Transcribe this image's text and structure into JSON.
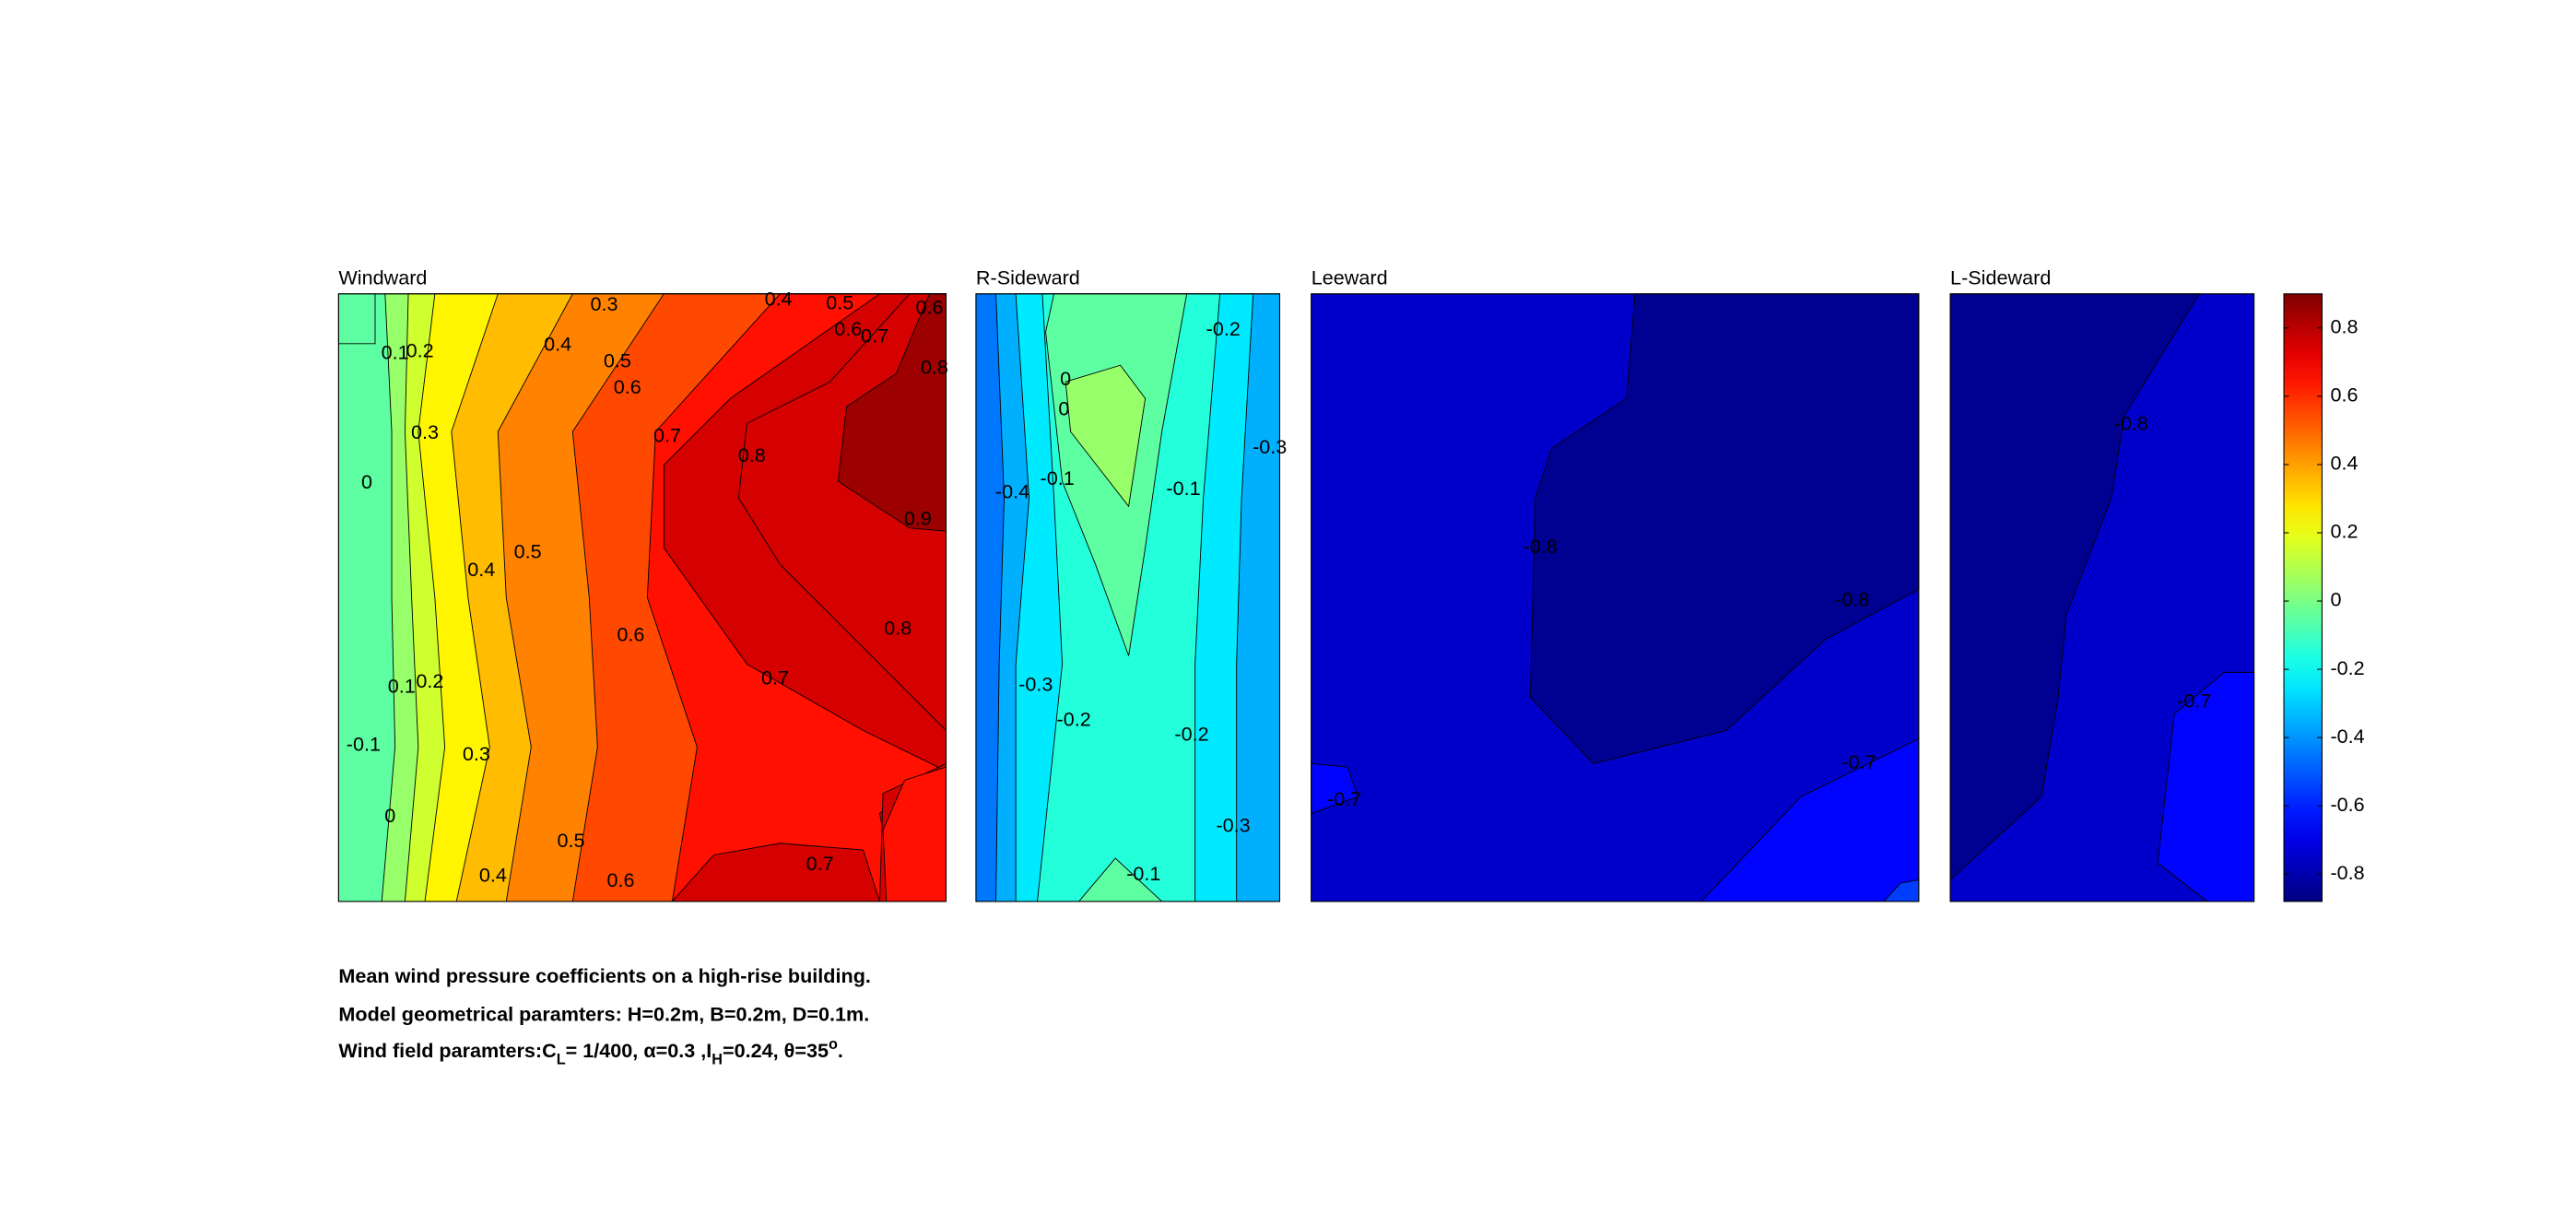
{
  "panels": [
    {
      "title": "Windward",
      "labels": [
        "0.1",
        "0.2",
        "0.3",
        "0.4",
        "0.5",
        "0.6",
        "0.4",
        "0.5",
        "0.6",
        "0.6",
        "0.7",
        "0.8",
        "0.3",
        "0",
        "0.7",
        "0.8",
        "0.9",
        "0.4",
        "0.5",
        "0.6",
        "0.8",
        "0.1",
        "0.2",
        "0.7",
        "-0.1",
        "0.3",
        "0",
        "0.5",
        "0.4",
        "0.6",
        "0.7"
      ]
    },
    {
      "title": "R-Sideward",
      "labels": [
        "-0.2",
        "0",
        "0",
        "-0.3",
        "-0.4",
        "-0.1",
        "-0.1",
        "-0.3",
        "-0.2",
        "-0.2",
        "-0.3",
        "-0.1"
      ]
    },
    {
      "title": "Leeward",
      "labels": [
        "-0.8",
        "-0.8",
        "-0.7",
        "-0.7"
      ]
    },
    {
      "title": "L-Sideward",
      "labels": [
        "-0.8",
        "-0.7"
      ]
    }
  ],
  "colorbar": {
    "clim": [
      -0.88,
      0.9
    ],
    "ticks": [
      0.8,
      0.6,
      0.4,
      0.2,
      0,
      -0.2,
      -0.4,
      -0.6,
      -0.8
    ]
  },
  "caption": {
    "lines": [
      [
        "Mean wind pressure coefficients on a high-rise building."
      ],
      [
        "Model geometrical paramters: H=0.2m, B=0.2m, D=0.1m."
      ],
      [
        "Wind field paramters:C",
        "L",
        "= 1/400, α=0.3 ,I",
        "H",
        "=0.24, θ=35",
        "o",
        "."
      ]
    ]
  }
}
